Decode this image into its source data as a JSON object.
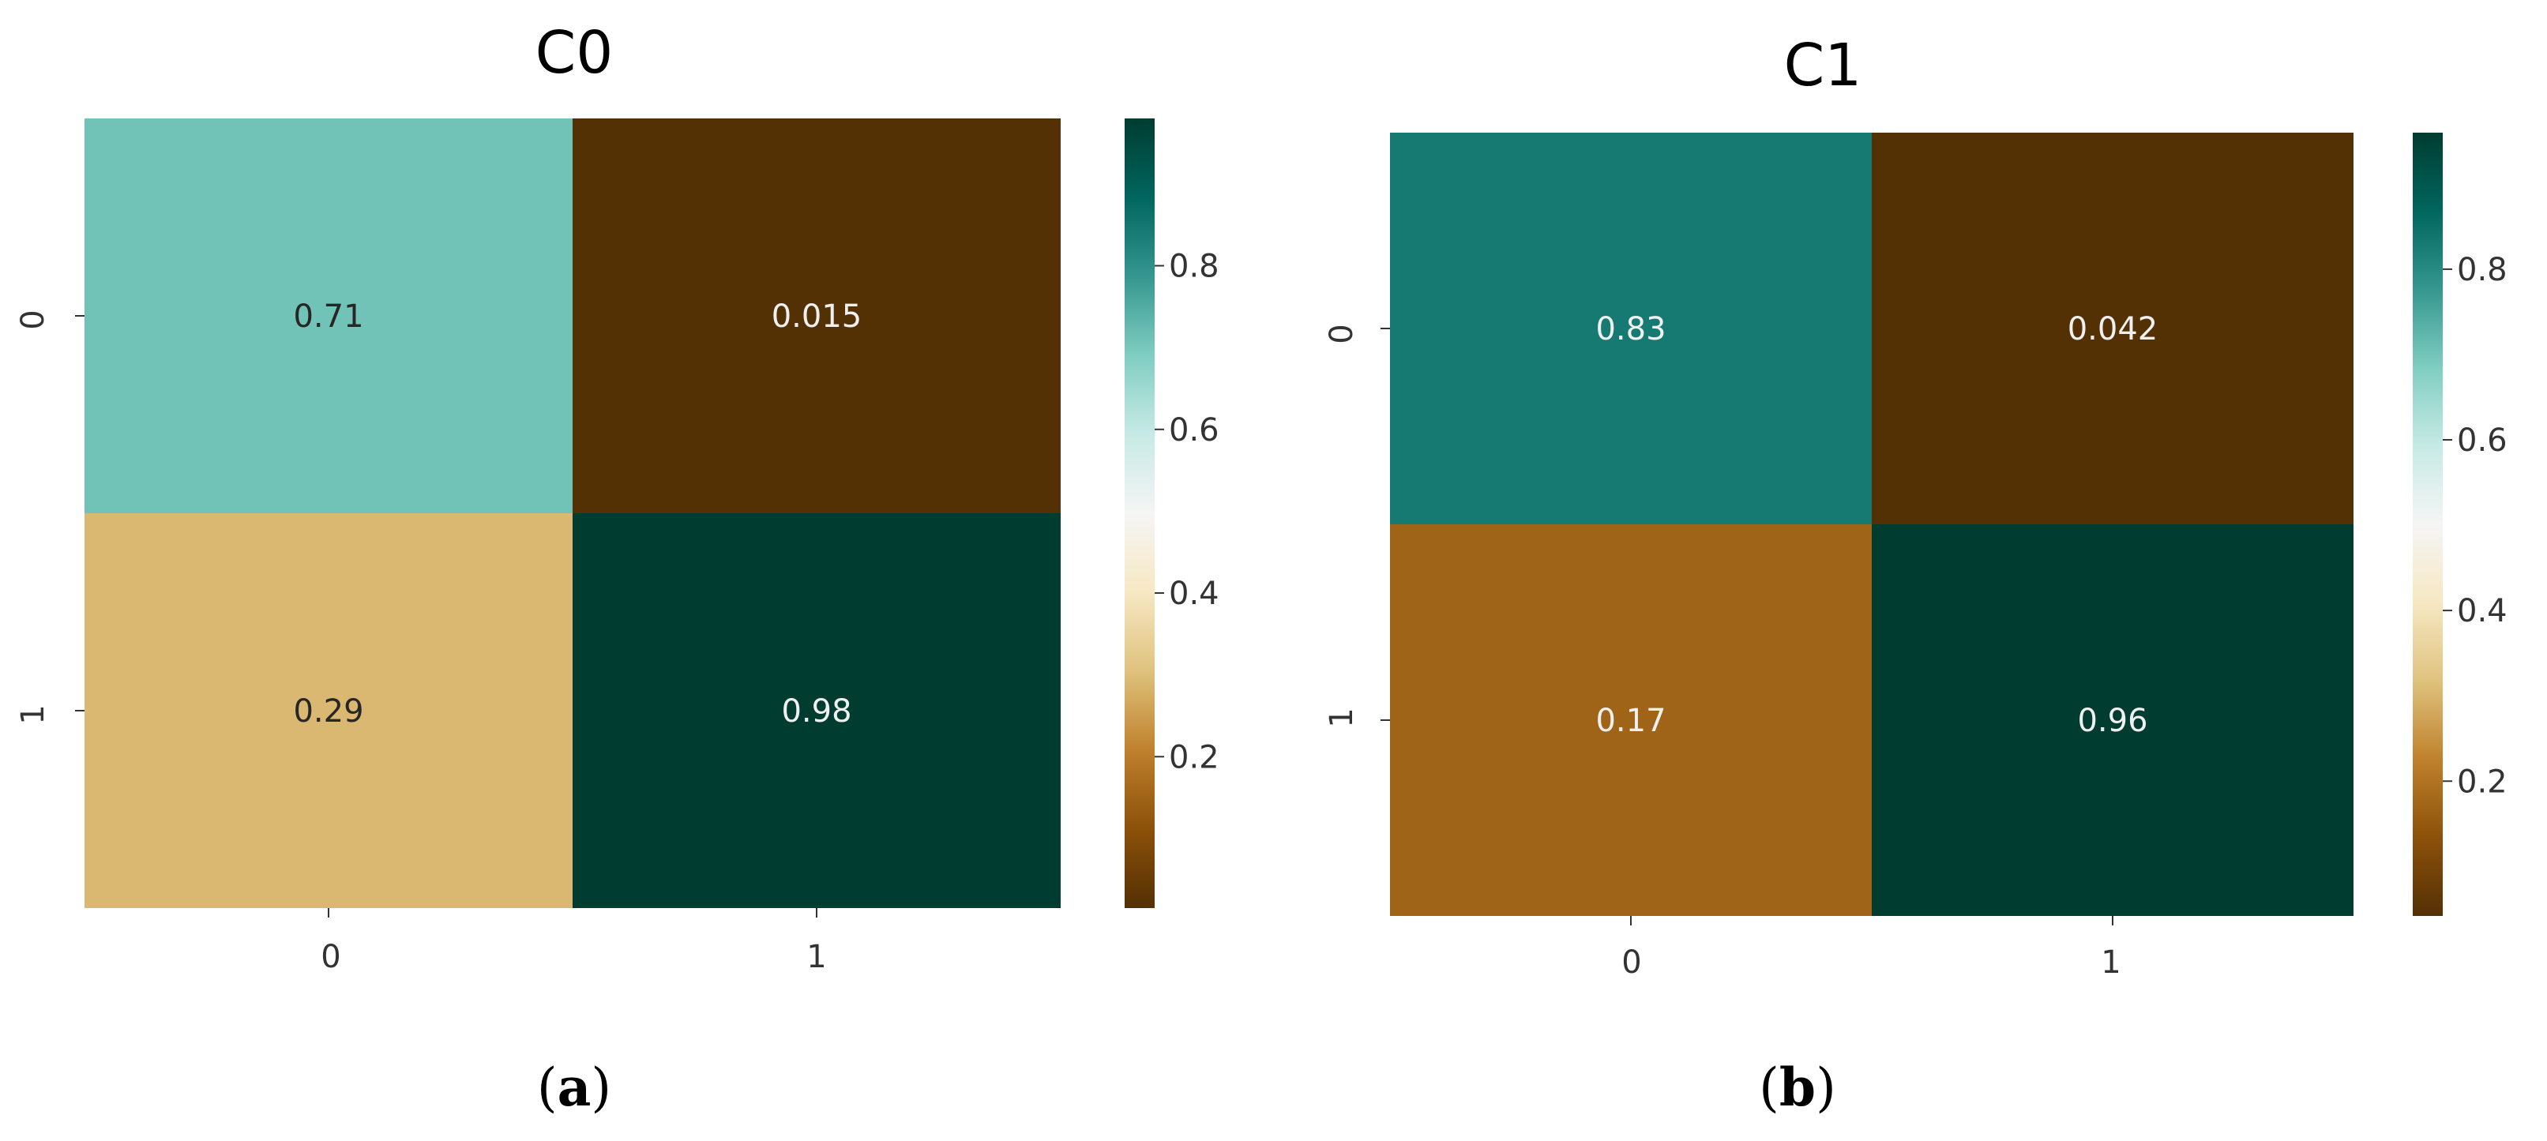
{
  "chart_data": [
    {
      "type": "heatmap",
      "title": "C0",
      "caption_letter": "a",
      "x_categories": [
        "0",
        "1"
      ],
      "y_categories": [
        "0",
        "1"
      ],
      "values": [
        [
          0.71,
          0.015
        ],
        [
          0.29,
          0.98
        ]
      ],
      "cell_labels": [
        [
          "0.71",
          "0.015"
        ],
        [
          "0.29",
          "0.98"
        ]
      ],
      "colorbar": {
        "range": [
          0.015,
          0.98
        ],
        "ticks": [
          "0.2",
          "0.4",
          "0.6",
          "0.8"
        ],
        "colormap": "BrBG"
      },
      "grid": false
    },
    {
      "type": "heatmap",
      "title": "C1",
      "caption_letter": "b",
      "x_categories": [
        "0",
        "1"
      ],
      "y_categories": [
        "0",
        "1"
      ],
      "values": [
        [
          0.83,
          0.042
        ],
        [
          0.17,
          0.96
        ]
      ],
      "cell_labels": [
        [
          "0.83",
          "0.042"
        ],
        [
          "0.17",
          "0.96"
        ]
      ],
      "colorbar": {
        "range": [
          0.042,
          0.96
        ],
        "ticks": [
          "0.2",
          "0.4",
          "0.6",
          "0.8"
        ],
        "colormap": "BrBG"
      },
      "grid": false
    }
  ],
  "caption_parens": [
    "(",
    ")"
  ],
  "colormap_stops": [
    "#543005",
    "#8c510a",
    "#bf812d",
    "#dfc27d",
    "#f6e8c3",
    "#f5f5f5",
    "#c7eae5",
    "#80cdc1",
    "#35978f",
    "#01665e",
    "#003c30"
  ]
}
